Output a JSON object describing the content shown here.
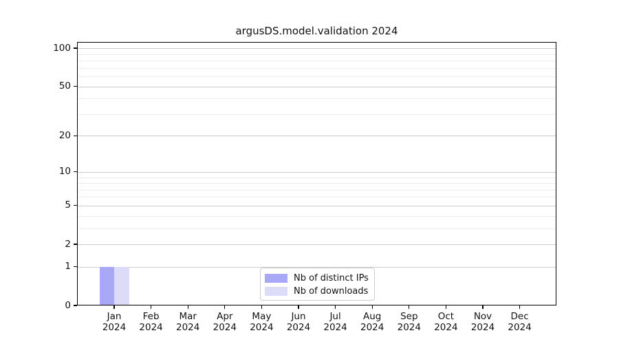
{
  "chart_data": {
    "type": "bar",
    "title": "argusDS.model.validation 2024",
    "categories": [
      "Jan\n2024",
      "Feb\n2024",
      "Mar\n2024",
      "Apr\n2024",
      "May\n2024",
      "Jun\n2024",
      "Jul\n2024",
      "Aug\n2024",
      "Sep\n2024",
      "Oct\n2024",
      "Nov\n2024",
      "Dec\n2024"
    ],
    "series": [
      {
        "name": "Nb of distinct IPs",
        "color": "#a8a8f7",
        "values": [
          1,
          0,
          0,
          0,
          0,
          0,
          0,
          0,
          0,
          0,
          0,
          0
        ]
      },
      {
        "name": "Nb of downloads",
        "color": "#dcdcf9",
        "values": [
          1,
          0,
          0,
          0,
          0,
          0,
          0,
          0,
          0,
          0,
          0,
          0
        ]
      }
    ],
    "xlabel": "",
    "ylabel": "",
    "y_axis": {
      "scale": "log1p",
      "ticks": [
        0,
        1,
        2,
        5,
        10,
        20,
        50,
        100
      ],
      "minor_ticks": [
        3,
        4,
        6,
        7,
        8,
        9,
        30,
        40,
        60,
        70,
        80,
        90
      ],
      "ylim": [
        0,
        112
      ]
    },
    "x_axis": {
      "tick_count": 12
    },
    "grid": true,
    "legend": {
      "position": "inside-bottom-center"
    },
    "colors": {
      "grid_major": "#cbcbcb",
      "grid_minor": "#ededed",
      "axis": "#000000",
      "background": "#ffffff"
    }
  }
}
